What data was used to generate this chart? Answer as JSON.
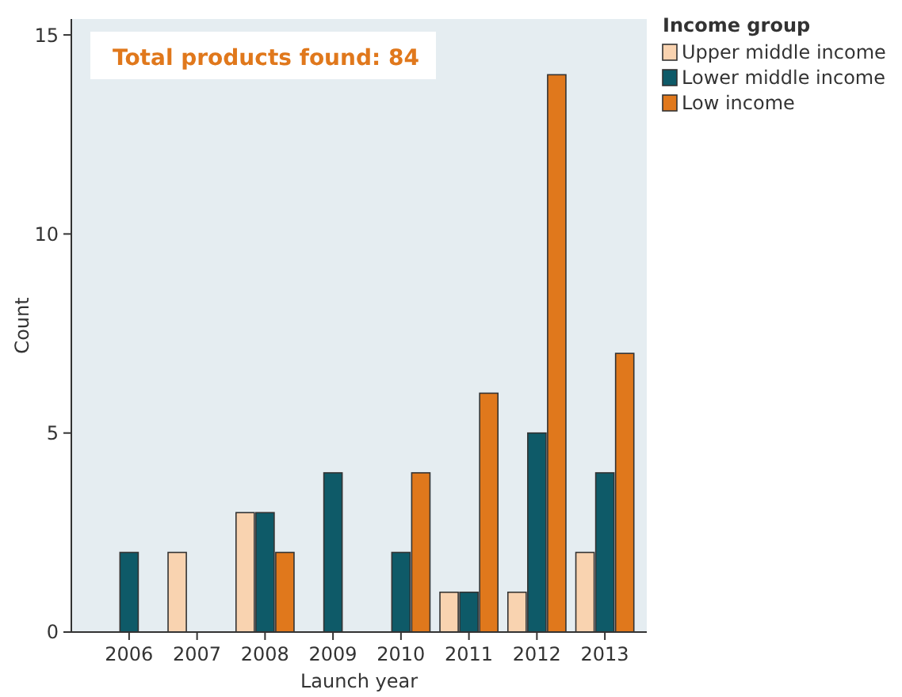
{
  "chart_data": {
    "type": "bar",
    "xlabel": "Launch year",
    "ylabel": "Count",
    "legend_title": "Income group",
    "legend": "right",
    "annotations": [
      "Total products found: 84"
    ],
    "categories": [
      "2006",
      "2007",
      "2008",
      "2009",
      "2010",
      "2011",
      "2012",
      "2013"
    ],
    "series": [
      {
        "name": "Upper middle income",
        "color": "#f9d3b0",
        "values": [
          null,
          2,
          3,
          null,
          null,
          1,
          1,
          2
        ]
      },
      {
        "name": "Lower middle income",
        "color": "#0e5a68",
        "values": [
          2,
          null,
          3,
          4,
          2,
          1,
          5,
          4
        ]
      },
      {
        "name": "Low income",
        "color": "#e0781c",
        "values": [
          null,
          null,
          2,
          null,
          4,
          6,
          14,
          7
        ]
      }
    ],
    "ylim": [
      0,
      15.4
    ],
    "yticks": [
      0,
      5,
      10,
      15
    ]
  }
}
